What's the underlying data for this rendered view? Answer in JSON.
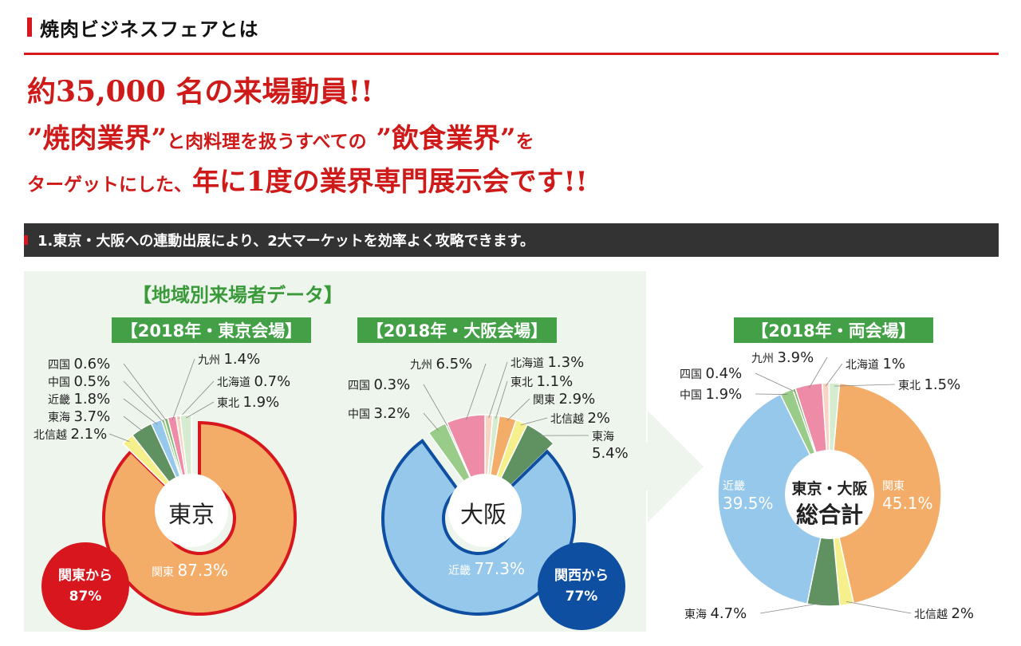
{
  "page_title": "焼肉ビジネスフェアとは",
  "headline": {
    "line1_a": "約35,000",
    "line1_b": "名の来場動員!!",
    "line2_a": "”焼肉業界”",
    "line2_b": "と肉料理を扱うすべての",
    "line2_c": "”飲食業界”",
    "line2_d": "を",
    "line3_a": "ターゲットにした、",
    "line3_b": "年に1度の業界専門展示会です!!"
  },
  "section_heading": "1.東京・大阪への連動出展により、2大マーケットを効率よく攻略できます。",
  "overall_title": "【地域別来場者データ】",
  "colors": {
    "accent_red": "#d7161e",
    "green": "#43a047",
    "panel_bg": "#edf5ec",
    "blue_badge": "#0e4fa2"
  },
  "chart_data": [
    {
      "type": "pie",
      "title": "【2018年・東京会場】",
      "center_label": "東京",
      "badge": {
        "line1": "関東から",
        "line2": "87%"
      },
      "unit": "%",
      "slices": [
        {
          "name": "関東",
          "value": 87.3,
          "color": "#f4ad68"
        },
        {
          "name": "北信越",
          "value": 2.1,
          "color": "#f6f08c"
        },
        {
          "name": "東海",
          "value": 3.7,
          "color": "#5f9161"
        },
        {
          "name": "近畿",
          "value": 1.8,
          "color": "#95c8ea"
        },
        {
          "name": "中国",
          "value": 0.5,
          "color": "#99cc88"
        },
        {
          "name": "四国",
          "value": 0.6,
          "color": "#7fb870"
        },
        {
          "name": "九州",
          "value": 1.4,
          "color": "#ee8ca8"
        },
        {
          "name": "北海道",
          "value": 0.7,
          "color": "#f8d4c2"
        },
        {
          "name": "東北",
          "value": 1.9,
          "color": "#d6ecd0"
        }
      ]
    },
    {
      "type": "pie",
      "title": "【2018年・大阪会場】",
      "center_label": "大阪",
      "badge": {
        "line1": "関西から",
        "line2": "77%"
      },
      "unit": "%",
      "slices": [
        {
          "name": "北海道",
          "value": 1.3,
          "color": "#f8d4c2"
        },
        {
          "name": "東北",
          "value": 1.1,
          "color": "#d6ecd0"
        },
        {
          "name": "関東",
          "value": 2.9,
          "color": "#f4ad68"
        },
        {
          "name": "北信越",
          "value": 2.0,
          "color": "#f6f08c"
        },
        {
          "name": "東海",
          "value": 5.4,
          "color": "#5f9161"
        },
        {
          "name": "近畿",
          "value": 77.3,
          "color": "#95c8ea"
        },
        {
          "name": "中国",
          "value": 3.2,
          "color": "#99cc88"
        },
        {
          "name": "四国",
          "value": 0.3,
          "color": "#7fb870"
        },
        {
          "name": "九州",
          "value": 6.5,
          "color": "#ee8ca8"
        }
      ]
    },
    {
      "type": "pie",
      "title": "【2018年・両会場】",
      "center_label_1": "東京・大阪",
      "center_label_2": "総合計",
      "unit": "%",
      "slices": [
        {
          "name": "関東",
          "value": 45.1,
          "color": "#f4ad68"
        },
        {
          "name": "北信越",
          "value": 2.0,
          "color": "#f6f08c"
        },
        {
          "name": "東海",
          "value": 4.7,
          "color": "#5f9161"
        },
        {
          "name": "近畿",
          "value": 39.5,
          "color": "#95c8ea"
        },
        {
          "name": "中国",
          "value": 1.9,
          "color": "#99cc88"
        },
        {
          "name": "四国",
          "value": 0.4,
          "color": "#7fb870"
        },
        {
          "name": "九州",
          "value": 3.9,
          "color": "#ee8ca8"
        },
        {
          "name": "北海道",
          "value": 1.0,
          "color": "#f8d4c2"
        },
        {
          "name": "東北",
          "value": 1.5,
          "color": "#d6ecd0"
        }
      ]
    }
  ]
}
